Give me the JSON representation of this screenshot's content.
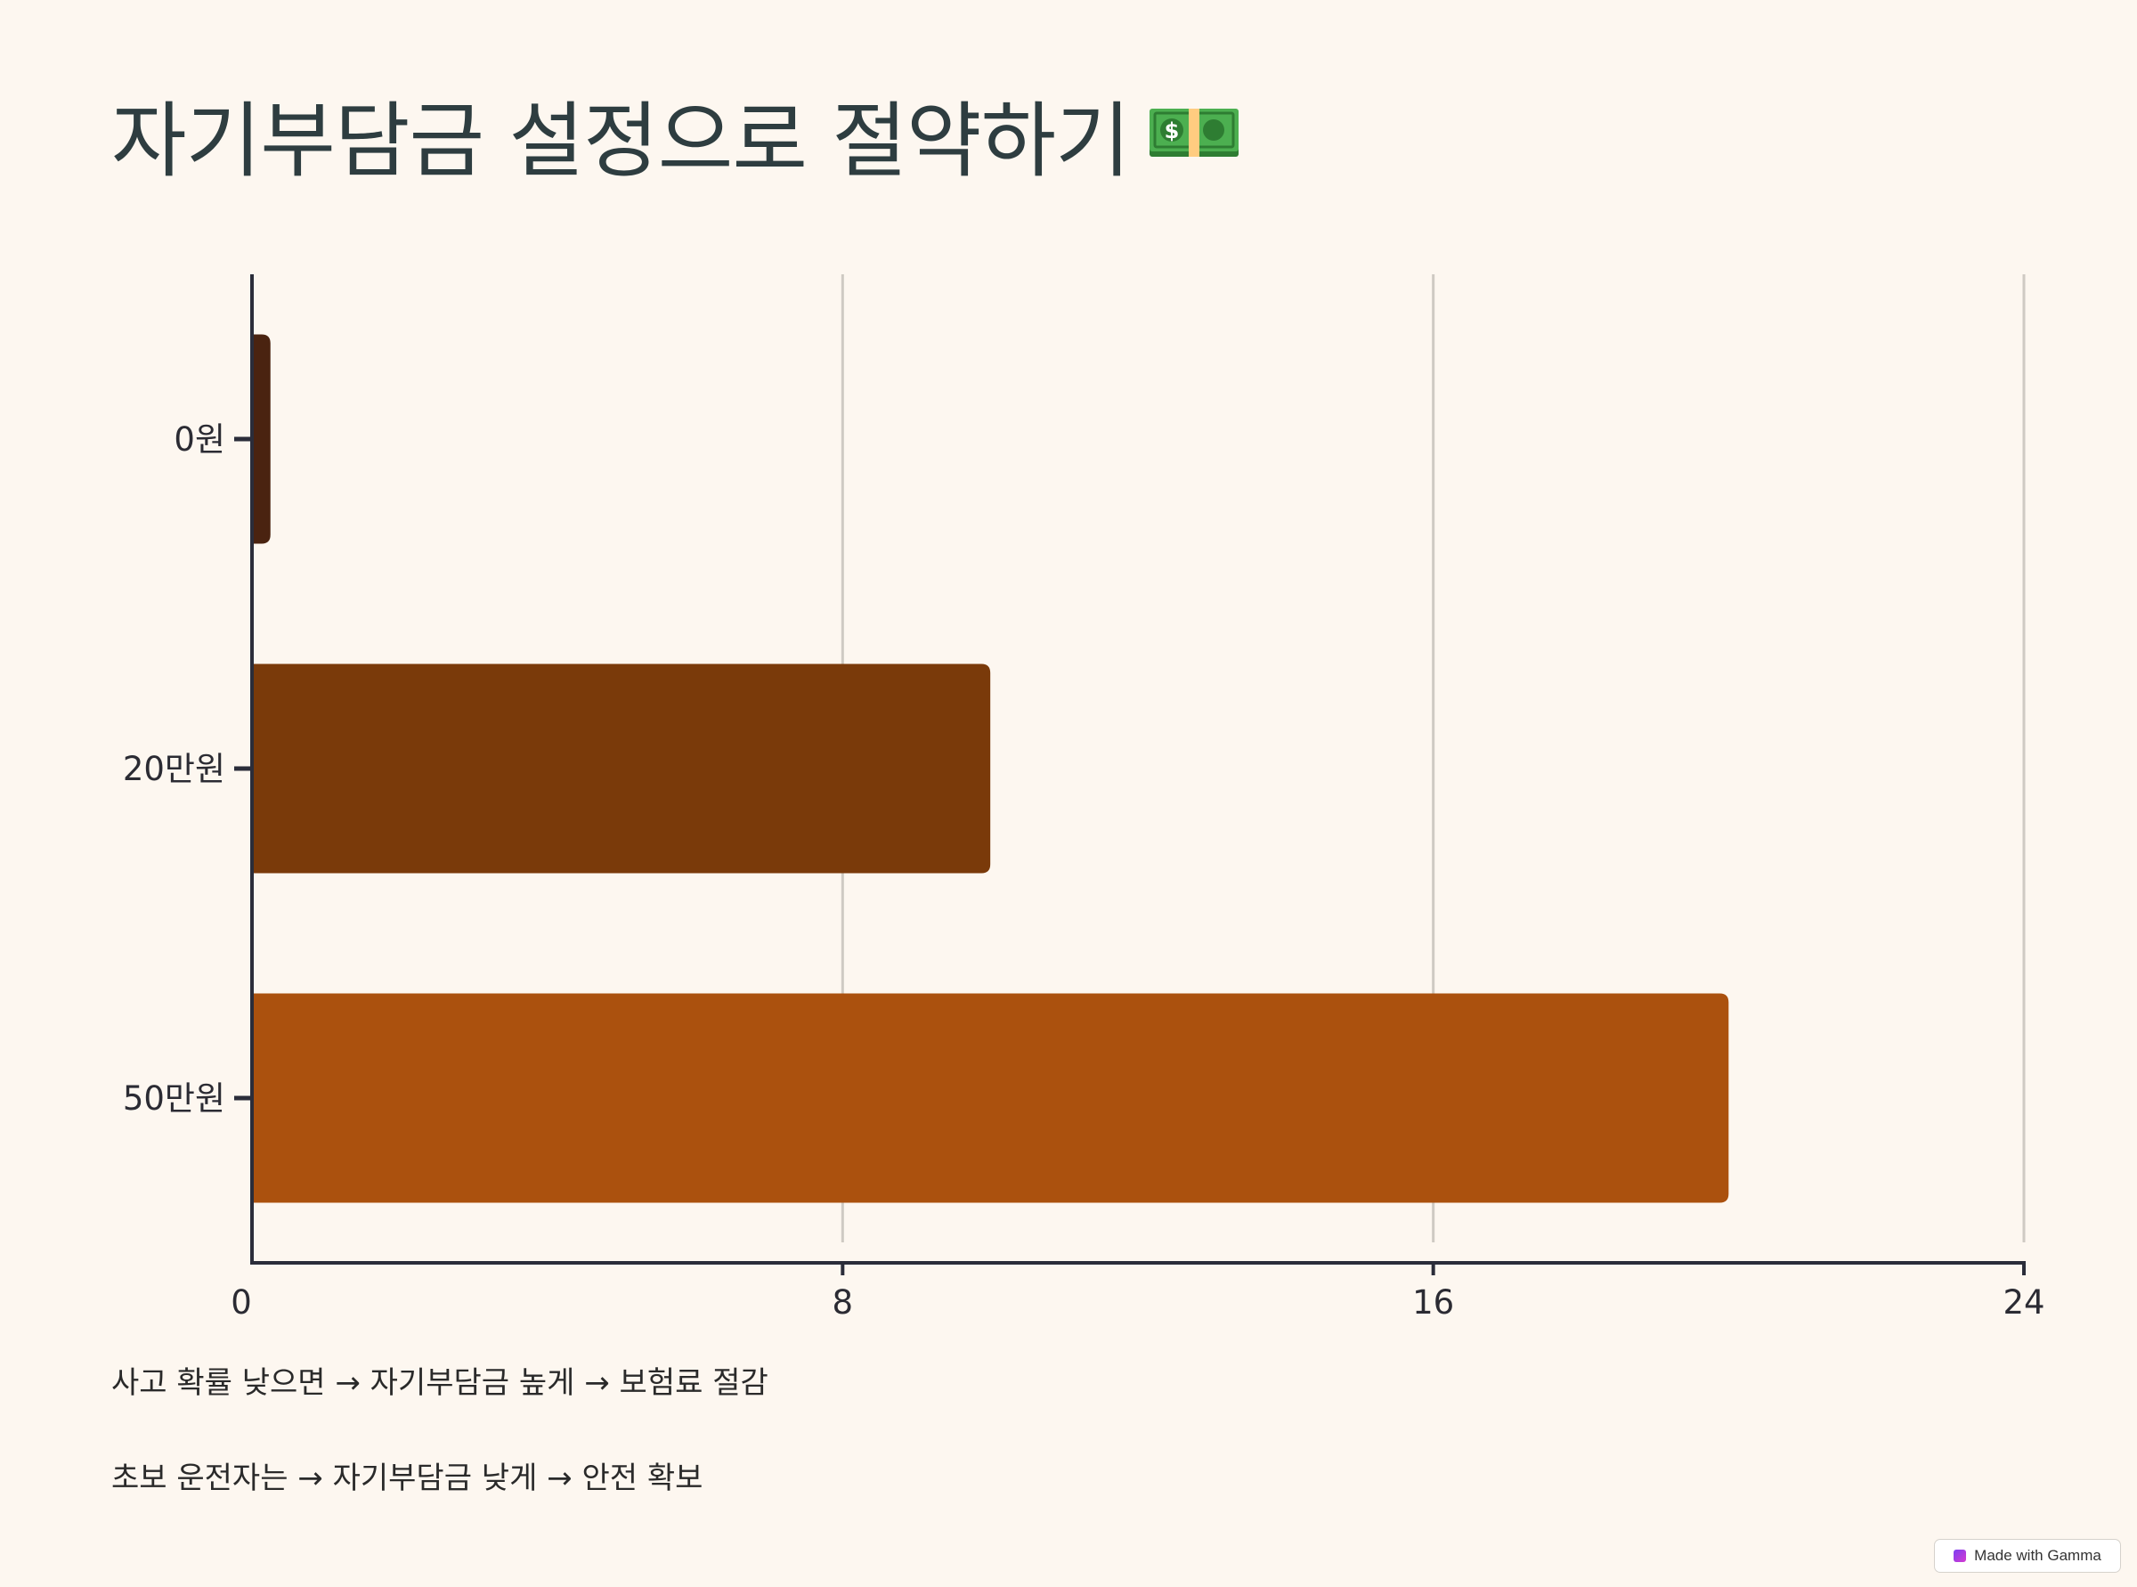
{
  "title": "자기부담금 설정으로 절약하기",
  "title_icon": "money-bill-icon",
  "chart_data": {
    "type": "bar",
    "orientation": "horizontal",
    "categories": [
      "0원",
      "20만원",
      "50만원"
    ],
    "values": [
      0.25,
      10,
      20
    ],
    "colors": [
      "#4a2310",
      "#7a3a0a",
      "#ab510e"
    ],
    "xticks": [
      "0",
      "8",
      "16",
      "24"
    ],
    "xlim": [
      0,
      24
    ],
    "grid": true
  },
  "notes": [
    "사고 확률 낮으면 → 자기부담금 높게 → 보험료 절감",
    "초보 운전자는 → 자기부담금 낮게 → 안전 확보"
  ],
  "badge": {
    "label": "Made with Gamma",
    "icon": "gamma-logo-icon"
  }
}
